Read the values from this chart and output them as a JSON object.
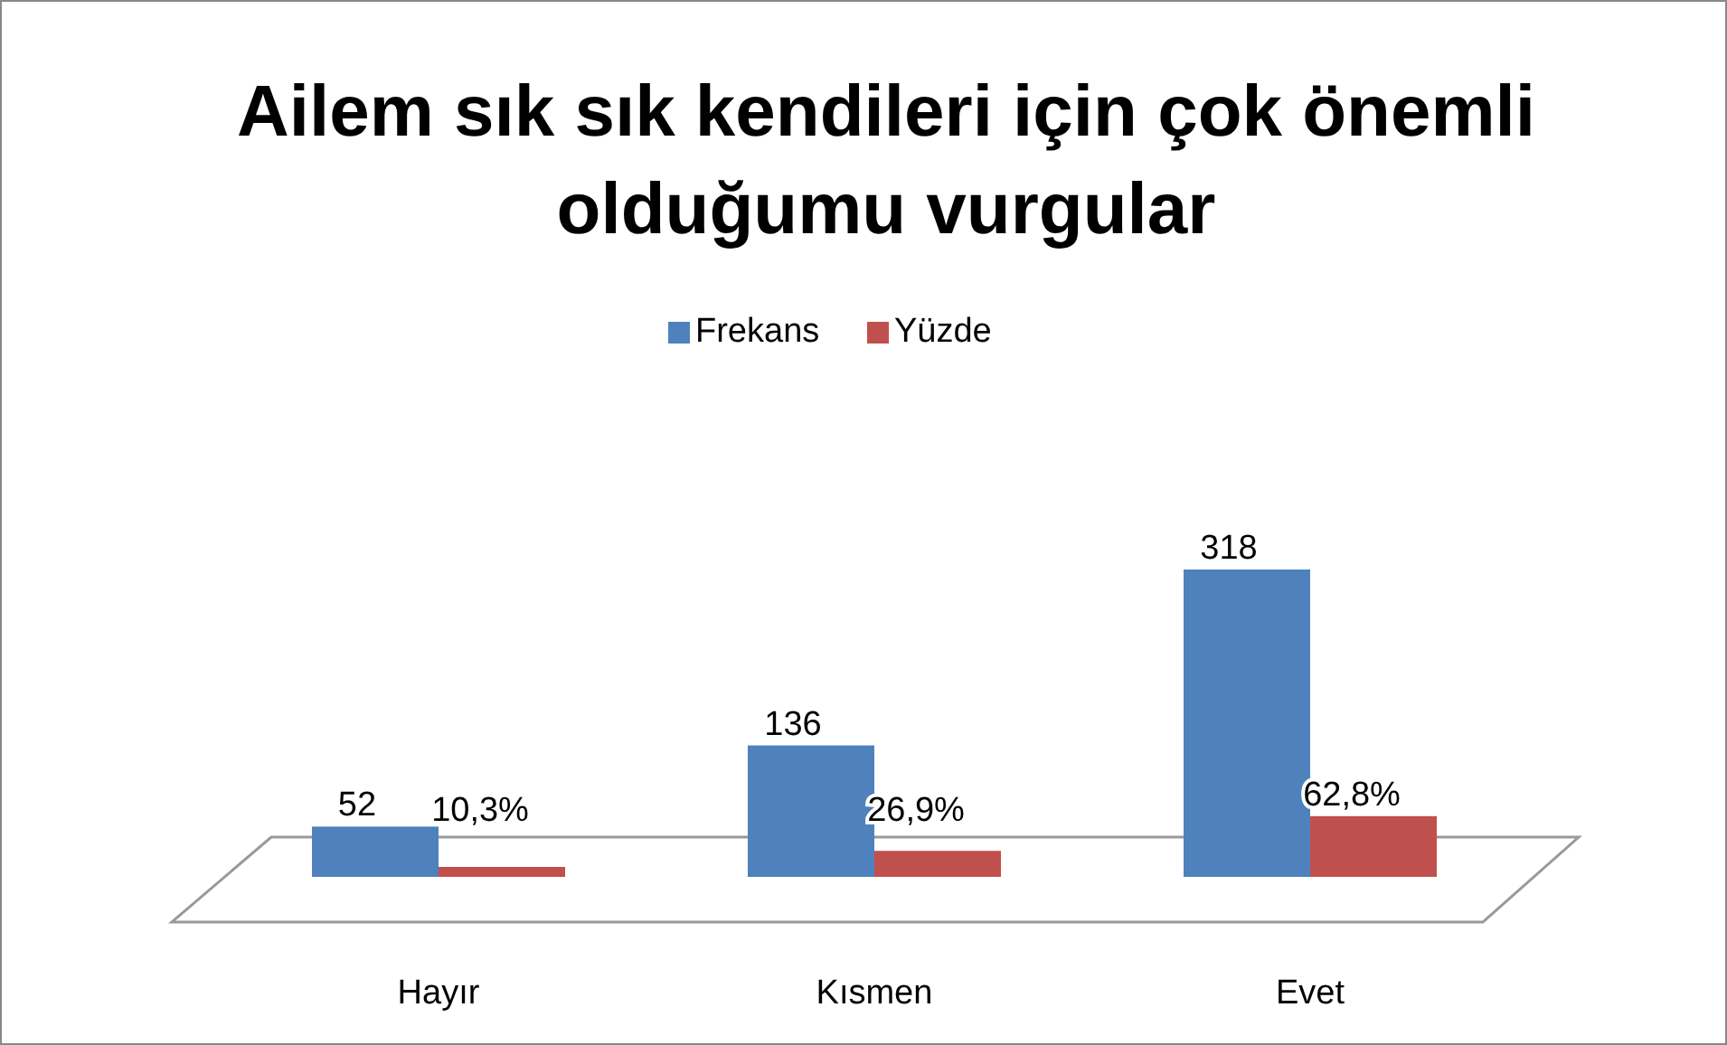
{
  "chart_data": {
    "type": "bar",
    "title": "Ailem sık sık kendileri için çok önemli olduğumu vurgular",
    "categories": [
      "Hayır",
      "Kısmen",
      "Evet"
    ],
    "series": [
      {
        "name": "Frekans",
        "color": "#4f81bd",
        "values": [
          52,
          136,
          318
        ],
        "value_labels": [
          "52",
          "136",
          "318"
        ]
      },
      {
        "name": "Yüzde",
        "color": "#c0504d",
        "values": [
          10.3,
          26.9,
          62.8
        ],
        "value_labels": [
          "10,3%",
          "26,9%",
          "62,8%"
        ]
      }
    ],
    "legend": "top"
  }
}
